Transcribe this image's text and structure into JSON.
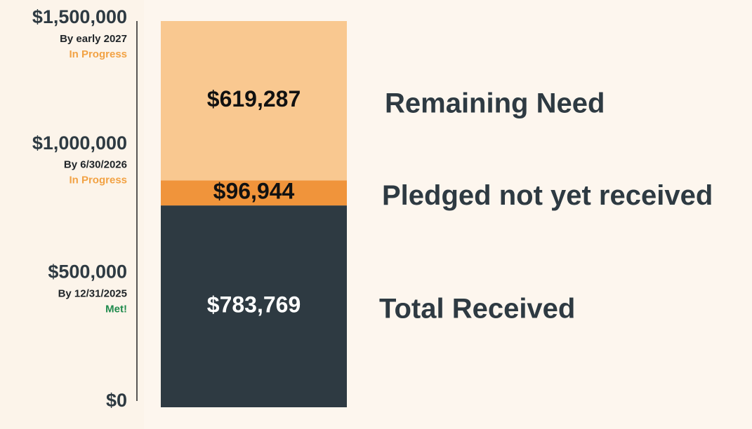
{
  "chart_data": {
    "type": "stacked_bar",
    "categories": [
      null
    ],
    "series": [
      {
        "name": "Total Received",
        "color": "#2e3a42",
        "label_color": "#ffffff",
        "values": [
          783769
        ],
        "value_labels": [
          "$783,769"
        ]
      },
      {
        "name": "Pledged not yet received",
        "color": "#f0943b",
        "label_color": "#111111",
        "values": [
          96944
        ],
        "value_labels": [
          "$96,944"
        ]
      },
      {
        "name": "Remaining Need",
        "color": "#f9c890",
        "label_color": "#111111",
        "values": [
          619287
        ],
        "value_labels": [
          "$619,287"
        ]
      }
    ],
    "ylim": [
      0,
      1500000
    ],
    "yticks": [
      {
        "value": 0,
        "label": "$0"
      },
      {
        "value": 500000,
        "label": "$500,000",
        "note": "By 12/31/2025",
        "status": "Met!",
        "status_color": "#1f8a4c"
      },
      {
        "value": 1000000,
        "label": "$1,000,000",
        "note": "By 6/30/2026",
        "status": "In Progress",
        "status_color": "#f2a244"
      },
      {
        "value": 1500000,
        "label": "$1,500,000",
        "note": "By early 2027",
        "status": "In Progress",
        "status_color": "#f2a244"
      }
    ],
    "grid": false
  }
}
